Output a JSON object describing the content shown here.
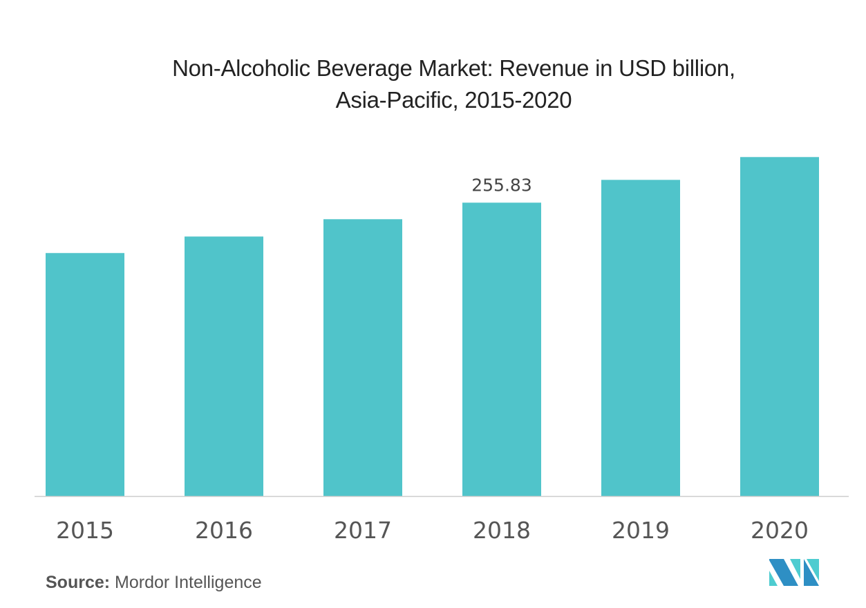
{
  "chart_data": {
    "type": "bar",
    "title": [
      "Non-Alcoholic Beverage Market: Revenue in USD billion,",
      "Asia-Pacific, 2015-2020"
    ],
    "categories": [
      "2015",
      "2016",
      "2017",
      "2018",
      "2019",
      "2020"
    ],
    "values": [
      211.9,
      226.3,
      241.4,
      255.83,
      275.7,
      295.6
    ],
    "data_labels": [
      null,
      null,
      null,
      "255.83",
      null,
      null
    ],
    "xlabel": "",
    "ylabel": "",
    "ylim": [
      0,
      300
    ],
    "grid": false,
    "bar_color": "#50C4CA",
    "axis_color": "#cccccc"
  },
  "source": {
    "label": "Source:",
    "text": "Mordor Intelligence"
  },
  "logo": {
    "colors": [
      "#2E8FC4",
      "#4ECCD0"
    ]
  }
}
